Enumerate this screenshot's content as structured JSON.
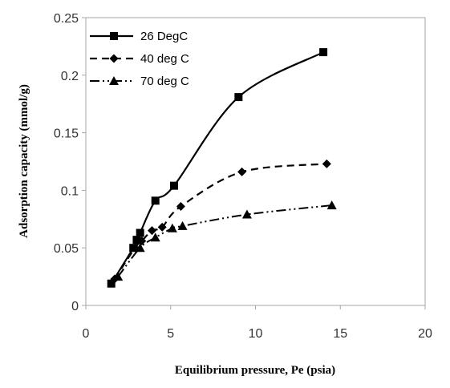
{
  "chart_data": {
    "type": "line",
    "title": "",
    "xlabel": "Equilibrium pressure, Pe (psia)",
    "ylabel": "Adsorption capacity (mmol/g)",
    "xlim": [
      0,
      20
    ],
    "ylim": [
      0,
      0.25
    ],
    "xticks": [
      0,
      5,
      10,
      15,
      20
    ],
    "yticks": [
      0,
      0.05,
      0.1,
      0.15,
      0.2,
      0.25
    ],
    "ytick_labels": [
      "0",
      "0.05",
      "0.1",
      "0.15",
      "0.2",
      "0.25"
    ],
    "grid": false,
    "legend_position": "top-left",
    "series": [
      {
        "name": "26 DegC",
        "marker": "square",
        "dash": "solid",
        "color": "#000000",
        "x": [
          1.5,
          2.8,
          3.0,
          3.2,
          4.1,
          5.2,
          9.0,
          14.0
        ],
        "y": [
          0.019,
          0.05,
          0.057,
          0.063,
          0.091,
          0.104,
          0.181,
          0.22
        ]
      },
      {
        "name": "40 deg C",
        "marker": "diamond",
        "dash": "dashed",
        "color": "#000000",
        "x": [
          1.7,
          2.9,
          3.3,
          3.9,
          4.5,
          5.6,
          9.2,
          14.2
        ],
        "y": [
          0.023,
          0.05,
          0.056,
          0.065,
          0.068,
          0.086,
          0.116,
          0.123
        ]
      },
      {
        "name": "70 deg C",
        "marker": "triangle",
        "dash": "dash-dot",
        "color": "#000000",
        "x": [
          1.9,
          3.2,
          4.1,
          5.1,
          5.7,
          9.5,
          14.5
        ],
        "y": [
          0.025,
          0.05,
          0.059,
          0.067,
          0.069,
          0.079,
          0.087
        ]
      }
    ]
  }
}
